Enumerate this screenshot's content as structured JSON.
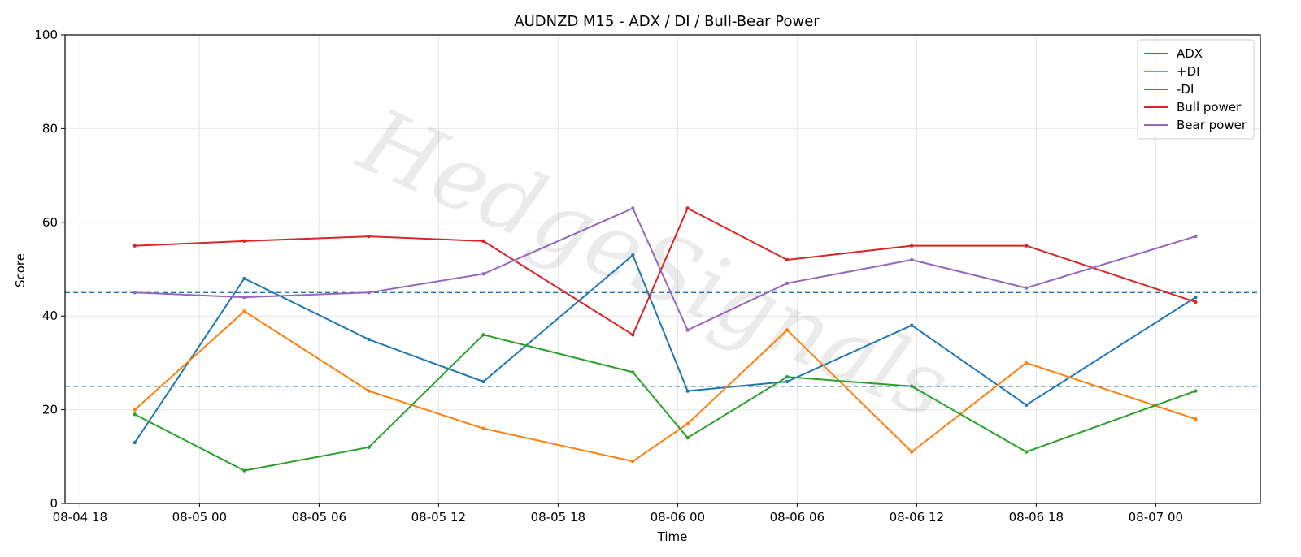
{
  "chart_data": {
    "type": "line",
    "title": "AUDNZD M15 - ADX / DI / Bull-Bear Power",
    "xlabel": "Time",
    "ylabel": "Score",
    "ylim": [
      0,
      100
    ],
    "yticks": [
      0,
      20,
      40,
      60,
      80,
      100
    ],
    "xlim": [
      "08-04 17:15",
      "08-07 05:15"
    ],
    "xticks": [
      {
        "label": "08-04 18",
        "t": "08-04 18:00"
      },
      {
        "label": "08-05 00",
        "t": "08-05 00:00"
      },
      {
        "label": "08-05 06",
        "t": "08-05 06:00"
      },
      {
        "label": "08-05 12",
        "t": "08-05 12:00"
      },
      {
        "label": "08-05 18",
        "t": "08-05 18:00"
      },
      {
        "label": "08-06 00",
        "t": "08-06 00:00"
      },
      {
        "label": "08-06 06",
        "t": "08-06 06:00"
      },
      {
        "label": "08-06 12",
        "t": "08-06 12:00"
      },
      {
        "label": "08-06 18",
        "t": "08-06 18:00"
      },
      {
        "label": "08-07 00",
        "t": "08-07 00:00"
      }
    ],
    "grid": true,
    "legend": "upper right",
    "hlines": [
      {
        "y": 45,
        "style": "dashed",
        "color": "#1f77b4"
      },
      {
        "y": 25,
        "style": "dashed",
        "color": "#1f77b4"
      }
    ],
    "watermark": "HedgeSignals",
    "x": [
      "08-04 20:45",
      "08-05 02:15",
      "08-05 08:30",
      "08-05 14:15",
      "08-05 21:45",
      "08-06 00:30",
      "08-06 05:30",
      "08-06 11:45",
      "08-06 17:30",
      "08-07 02:00"
    ],
    "series": [
      {
        "name": "ADX",
        "color": "#1f77b4",
        "values": [
          13,
          48,
          35,
          26,
          53,
          24,
          26,
          38,
          21,
          44
        ]
      },
      {
        "name": "+DI",
        "color": "#ff7f0e",
        "values": [
          20,
          41,
          24,
          16,
          9,
          17,
          37,
          11,
          30,
          18
        ]
      },
      {
        "name": "-DI",
        "color": "#2ca02c",
        "values": [
          19,
          7,
          12,
          36,
          28,
          14,
          27,
          25,
          11,
          24
        ]
      },
      {
        "name": "Bull power",
        "color": "#d62728",
        "values": [
          55,
          56,
          57,
          56,
          36,
          63,
          52,
          55,
          55,
          43
        ]
      },
      {
        "name": "Bear power",
        "color": "#9467bd",
        "values": [
          45,
          44,
          45,
          49,
          63,
          37,
          47,
          52,
          46,
          57
        ]
      }
    ]
  }
}
